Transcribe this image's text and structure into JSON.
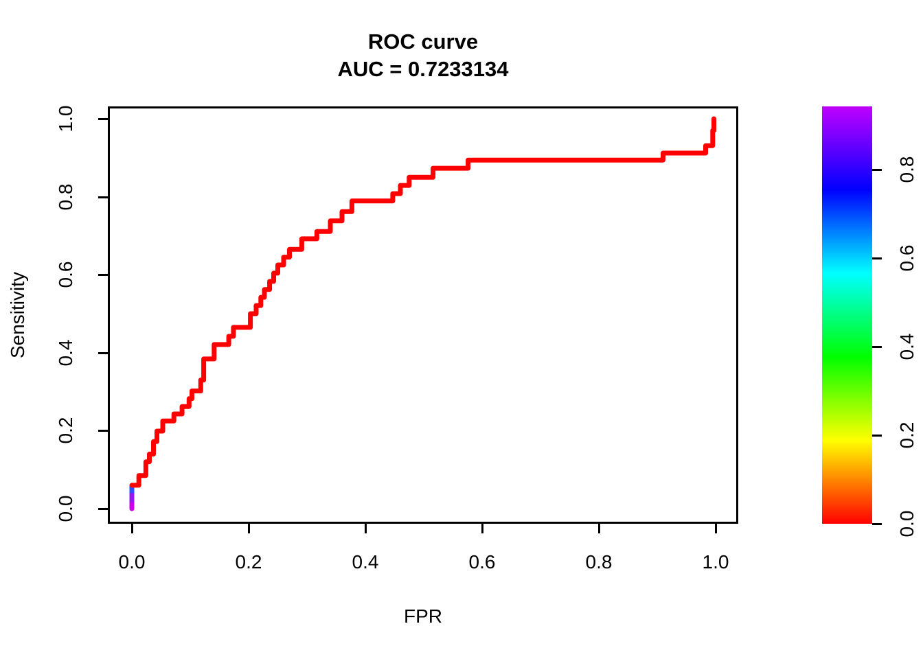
{
  "title": {
    "line1": "ROC curve",
    "line2": "AUC = 0.7233134"
  },
  "chart_data": {
    "type": "line",
    "subtype": "roc-step-curve",
    "title": "ROC curve",
    "subtitle": "AUC = 0.7233134",
    "auc": 0.7233134,
    "xlabel": "FPR",
    "ylabel": "Sensitivity",
    "xlim": [
      0,
      1
    ],
    "ylim": [
      0,
      1
    ],
    "grid": false,
    "legend": "none",
    "x_ticks": {
      "values": [
        0.0,
        0.2,
        0.4,
        0.6,
        0.8,
        1.0
      ],
      "labels": [
        "0.0",
        "0.2",
        "0.4",
        "0.6",
        "0.8",
        "1.0"
      ]
    },
    "y_ticks": {
      "values": [
        0.0,
        0.2,
        0.4,
        0.6,
        0.8,
        1.0
      ],
      "labels": [
        "0.0",
        "0.2",
        "0.4",
        "0.6",
        "0.8",
        "1.0"
      ]
    },
    "curve": {
      "name": "ROC curve (FPR vs Sensitivity)",
      "color": "#FF0000",
      "stroke_width": 7,
      "points": [
        [
          0.0,
          0.06
        ],
        [
          0.012,
          0.06
        ],
        [
          0.012,
          0.085
        ],
        [
          0.024,
          0.085
        ],
        [
          0.024,
          0.12
        ],
        [
          0.03,
          0.12
        ],
        [
          0.03,
          0.14
        ],
        [
          0.037,
          0.14
        ],
        [
          0.037,
          0.172
        ],
        [
          0.043,
          0.172
        ],
        [
          0.043,
          0.199
        ],
        [
          0.053,
          0.199
        ],
        [
          0.053,
          0.225
        ],
        [
          0.072,
          0.225
        ],
        [
          0.072,
          0.243
        ],
        [
          0.086,
          0.243
        ],
        [
          0.086,
          0.262
        ],
        [
          0.098,
          0.262
        ],
        [
          0.098,
          0.282
        ],
        [
          0.103,
          0.282
        ],
        [
          0.103,
          0.302
        ],
        [
          0.118,
          0.302
        ],
        [
          0.118,
          0.33
        ],
        [
          0.123,
          0.33
        ],
        [
          0.123,
          0.384
        ],
        [
          0.141,
          0.384
        ],
        [
          0.141,
          0.421
        ],
        [
          0.166,
          0.421
        ],
        [
          0.166,
          0.442
        ],
        [
          0.174,
          0.442
        ],
        [
          0.174,
          0.465
        ],
        [
          0.203,
          0.465
        ],
        [
          0.203,
          0.5
        ],
        [
          0.213,
          0.5
        ],
        [
          0.213,
          0.521
        ],
        [
          0.221,
          0.521
        ],
        [
          0.221,
          0.542
        ],
        [
          0.227,
          0.542
        ],
        [
          0.227,
          0.562
        ],
        [
          0.236,
          0.562
        ],
        [
          0.236,
          0.583
        ],
        [
          0.243,
          0.583
        ],
        [
          0.243,
          0.604
        ],
        [
          0.25,
          0.604
        ],
        [
          0.25,
          0.625
        ],
        [
          0.26,
          0.625
        ],
        [
          0.26,
          0.645
        ],
        [
          0.27,
          0.645
        ],
        [
          0.27,
          0.665
        ],
        [
          0.291,
          0.665
        ],
        [
          0.291,
          0.692
        ],
        [
          0.317,
          0.692
        ],
        [
          0.317,
          0.711
        ],
        [
          0.34,
          0.711
        ],
        [
          0.34,
          0.738
        ],
        [
          0.36,
          0.738
        ],
        [
          0.36,
          0.762
        ],
        [
          0.377,
          0.762
        ],
        [
          0.377,
          0.789
        ],
        [
          0.447,
          0.789
        ],
        [
          0.447,
          0.808
        ],
        [
          0.46,
          0.808
        ],
        [
          0.46,
          0.829
        ],
        [
          0.475,
          0.829
        ],
        [
          0.475,
          0.85
        ],
        [
          0.516,
          0.85
        ],
        [
          0.516,
          0.873
        ],
        [
          0.576,
          0.873
        ],
        [
          0.576,
          0.894
        ],
        [
          0.91,
          0.894
        ],
        [
          0.91,
          0.912
        ],
        [
          0.983,
          0.912
        ],
        [
          0.983,
          0.931
        ],
        [
          0.995,
          0.931
        ],
        [
          0.995,
          0.97
        ],
        [
          0.997,
          0.97
        ],
        [
          0.997,
          1.0
        ]
      ]
    },
    "threshold_start_segments": [
      {
        "x": 0.0,
        "y_from": 0.0,
        "y_to": 0.02,
        "color": "#CC00E8"
      },
      {
        "x": 0.0,
        "y_from": 0.016,
        "y_to": 0.042,
        "color": "#9416F0"
      },
      {
        "x": 0.0,
        "y_from": 0.04,
        "y_to": 0.06,
        "color": "#2E50FA"
      }
    ],
    "colorbar": {
      "position": "right",
      "min": 0.0,
      "max": 0.943,
      "gradient_bottom_to_top": [
        "#FF0000",
        "#FFFF00",
        "#00FF00",
        "#00FFFF",
        "#0000FF",
        "#BF00FF"
      ],
      "ticks": {
        "values": [
          0.0,
          0.2,
          0.4,
          0.6,
          0.8
        ],
        "labels": [
          "0.0",
          "0.2",
          "0.4",
          "0.6",
          "0.8"
        ]
      }
    }
  }
}
